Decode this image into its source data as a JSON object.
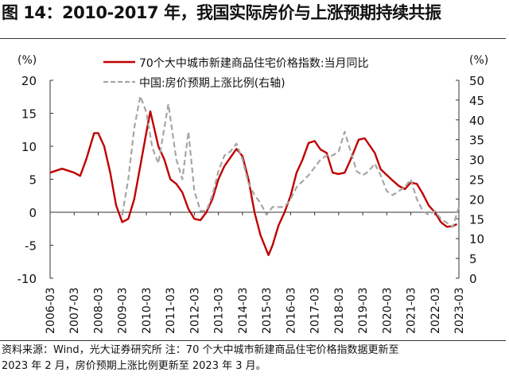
{
  "title": "图 14：2010-2017 年，我国实际房价与上涨预期持续共振",
  "note_line1": "资料来源：Wind，光大证券研究所 注：70 个大中城市新建商品住宅价格指数据更新至",
  "note_line2": "2023 年 2 月，房价预期上涨比例更新至 2023 年 3 月。",
  "chart_data": {
    "type": "line",
    "title": "",
    "left_unit": "(%)",
    "right_unit": "(%)",
    "ylim_left": [
      -10,
      20
    ],
    "yticks_left": [
      -10,
      -5,
      0,
      5,
      10,
      15,
      20
    ],
    "ylim_right": [
      0,
      50
    ],
    "yticks_right": [
      0,
      5,
      10,
      15,
      20,
      25,
      30,
      35,
      40,
      45,
      50
    ],
    "xlim": [
      "2006-03",
      "2023-03"
    ],
    "xticks": [
      "2006-03",
      "2007-03",
      "2008-03",
      "2009-03",
      "2010-03",
      "2011-03",
      "2012-03",
      "2013-03",
      "2014-03",
      "2015-03",
      "2016-03",
      "2017-03",
      "2018-03",
      "2019-03",
      "2020-03",
      "2021-03",
      "2022-03",
      "2023-03"
    ],
    "legend_placement": "top-center",
    "series": [
      {
        "name": "70个大中城市新建商品住宅价格指数:当月同比",
        "axis": "left",
        "color": "#c00000",
        "style": "solid",
        "points": [
          [
            "2006-03",
            6
          ],
          [
            "2006-09",
            6.6
          ],
          [
            "2007-03",
            6
          ],
          [
            "2007-06",
            5.5
          ],
          [
            "2007-09",
            8
          ],
          [
            "2008-01",
            12
          ],
          [
            "2008-03",
            12
          ],
          [
            "2008-06",
            10
          ],
          [
            "2008-09",
            6
          ],
          [
            "2008-12",
            1
          ],
          [
            "2009-03",
            -1.5
          ],
          [
            "2009-06",
            -1
          ],
          [
            "2009-09",
            2
          ],
          [
            "2009-12",
            7
          ],
          [
            "2010-03",
            12
          ],
          [
            "2010-05",
            15.3
          ],
          [
            "2010-09",
            10
          ],
          [
            "2010-12",
            8
          ],
          [
            "2011-03",
            5
          ],
          [
            "2011-06",
            4.3
          ],
          [
            "2011-09",
            3
          ],
          [
            "2011-12",
            0.5
          ],
          [
            "2012-03",
            -1
          ],
          [
            "2012-06",
            -1.2
          ],
          [
            "2012-09",
            0
          ],
          [
            "2012-12",
            2
          ],
          [
            "2013-03",
            5
          ],
          [
            "2013-06",
            7
          ],
          [
            "2013-12",
            9.6
          ],
          [
            "2014-03",
            8.5
          ],
          [
            "2014-06",
            5
          ],
          [
            "2014-09",
            0
          ],
          [
            "2014-12",
            -3.5
          ],
          [
            "2015-04",
            -6.5
          ],
          [
            "2015-06",
            -5
          ],
          [
            "2015-09",
            -2
          ],
          [
            "2015-12",
            0
          ],
          [
            "2016-03",
            2.5
          ],
          [
            "2016-06",
            6
          ],
          [
            "2016-09",
            8
          ],
          [
            "2016-12",
            10.5
          ],
          [
            "2017-03",
            10.8
          ],
          [
            "2017-06",
            9.5
          ],
          [
            "2017-09",
            9
          ],
          [
            "2017-12",
            6
          ],
          [
            "2018-03",
            5.8
          ],
          [
            "2018-06",
            6
          ],
          [
            "2018-09",
            8
          ],
          [
            "2019-01",
            11
          ],
          [
            "2019-04",
            11.2
          ],
          [
            "2019-09",
            9
          ],
          [
            "2019-12",
            6.5
          ],
          [
            "2020-06",
            4.8
          ],
          [
            "2020-09",
            4
          ],
          [
            "2020-12",
            3.5
          ],
          [
            "2021-03",
            4.5
          ],
          [
            "2021-06",
            4.3
          ],
          [
            "2021-09",
            2.8
          ],
          [
            "2021-12",
            1
          ],
          [
            "2022-03",
            0
          ],
          [
            "2022-06",
            -1.5
          ],
          [
            "2022-09",
            -2.2
          ],
          [
            "2022-12",
            -2.1
          ],
          [
            "2023-02",
            -1.8
          ]
        ]
      },
      {
        "name": "中国:房价预期上涨比例(右轴)",
        "axis": "right",
        "color": "#a6a6a6",
        "style": "dashed",
        "points": [
          [
            "2009-03",
            16
          ],
          [
            "2009-06",
            25
          ],
          [
            "2009-09",
            38
          ],
          [
            "2009-12",
            46
          ],
          [
            "2010-03",
            42
          ],
          [
            "2010-06",
            33
          ],
          [
            "2010-09",
            29
          ],
          [
            "2010-12",
            38
          ],
          [
            "2011-02",
            44
          ],
          [
            "2011-06",
            30
          ],
          [
            "2011-09",
            25
          ],
          [
            "2011-12",
            37
          ],
          [
            "2012-03",
            22
          ],
          [
            "2012-06",
            17
          ],
          [
            "2012-09",
            17
          ],
          [
            "2012-12",
            21
          ],
          [
            "2013-03",
            27
          ],
          [
            "2013-06",
            31
          ],
          [
            "2013-09",
            32
          ],
          [
            "2013-12",
            34
          ],
          [
            "2014-03",
            30
          ],
          [
            "2014-06",
            24
          ],
          [
            "2014-09",
            21
          ],
          [
            "2014-12",
            19
          ],
          [
            "2015-03",
            16
          ],
          [
            "2015-06",
            18
          ],
          [
            "2015-09",
            18
          ],
          [
            "2015-12",
            18
          ],
          [
            "2016-03",
            20
          ],
          [
            "2016-06",
            23
          ],
          [
            "2016-12",
            26
          ],
          [
            "2017-03",
            28
          ],
          [
            "2017-06",
            30
          ],
          [
            "2017-09",
            31
          ],
          [
            "2017-12",
            31
          ],
          [
            "2018-03",
            32
          ],
          [
            "2018-06",
            37
          ],
          [
            "2018-09",
            32
          ],
          [
            "2018-12",
            27
          ],
          [
            "2019-03",
            26
          ],
          [
            "2019-06",
            27
          ],
          [
            "2019-09",
            29
          ],
          [
            "2019-12",
            26
          ],
          [
            "2020-03",
            22
          ],
          [
            "2020-06",
            21
          ],
          [
            "2020-09",
            22
          ],
          [
            "2020-12",
            23
          ],
          [
            "2021-03",
            25
          ],
          [
            "2021-06",
            20
          ],
          [
            "2021-09",
            17
          ],
          [
            "2021-12",
            16
          ],
          [
            "2022-03",
            17
          ],
          [
            "2022-06",
            15
          ],
          [
            "2022-09",
            14
          ],
          [
            "2022-12",
            13
          ],
          [
            "2023-03",
            18
          ]
        ]
      }
    ]
  }
}
